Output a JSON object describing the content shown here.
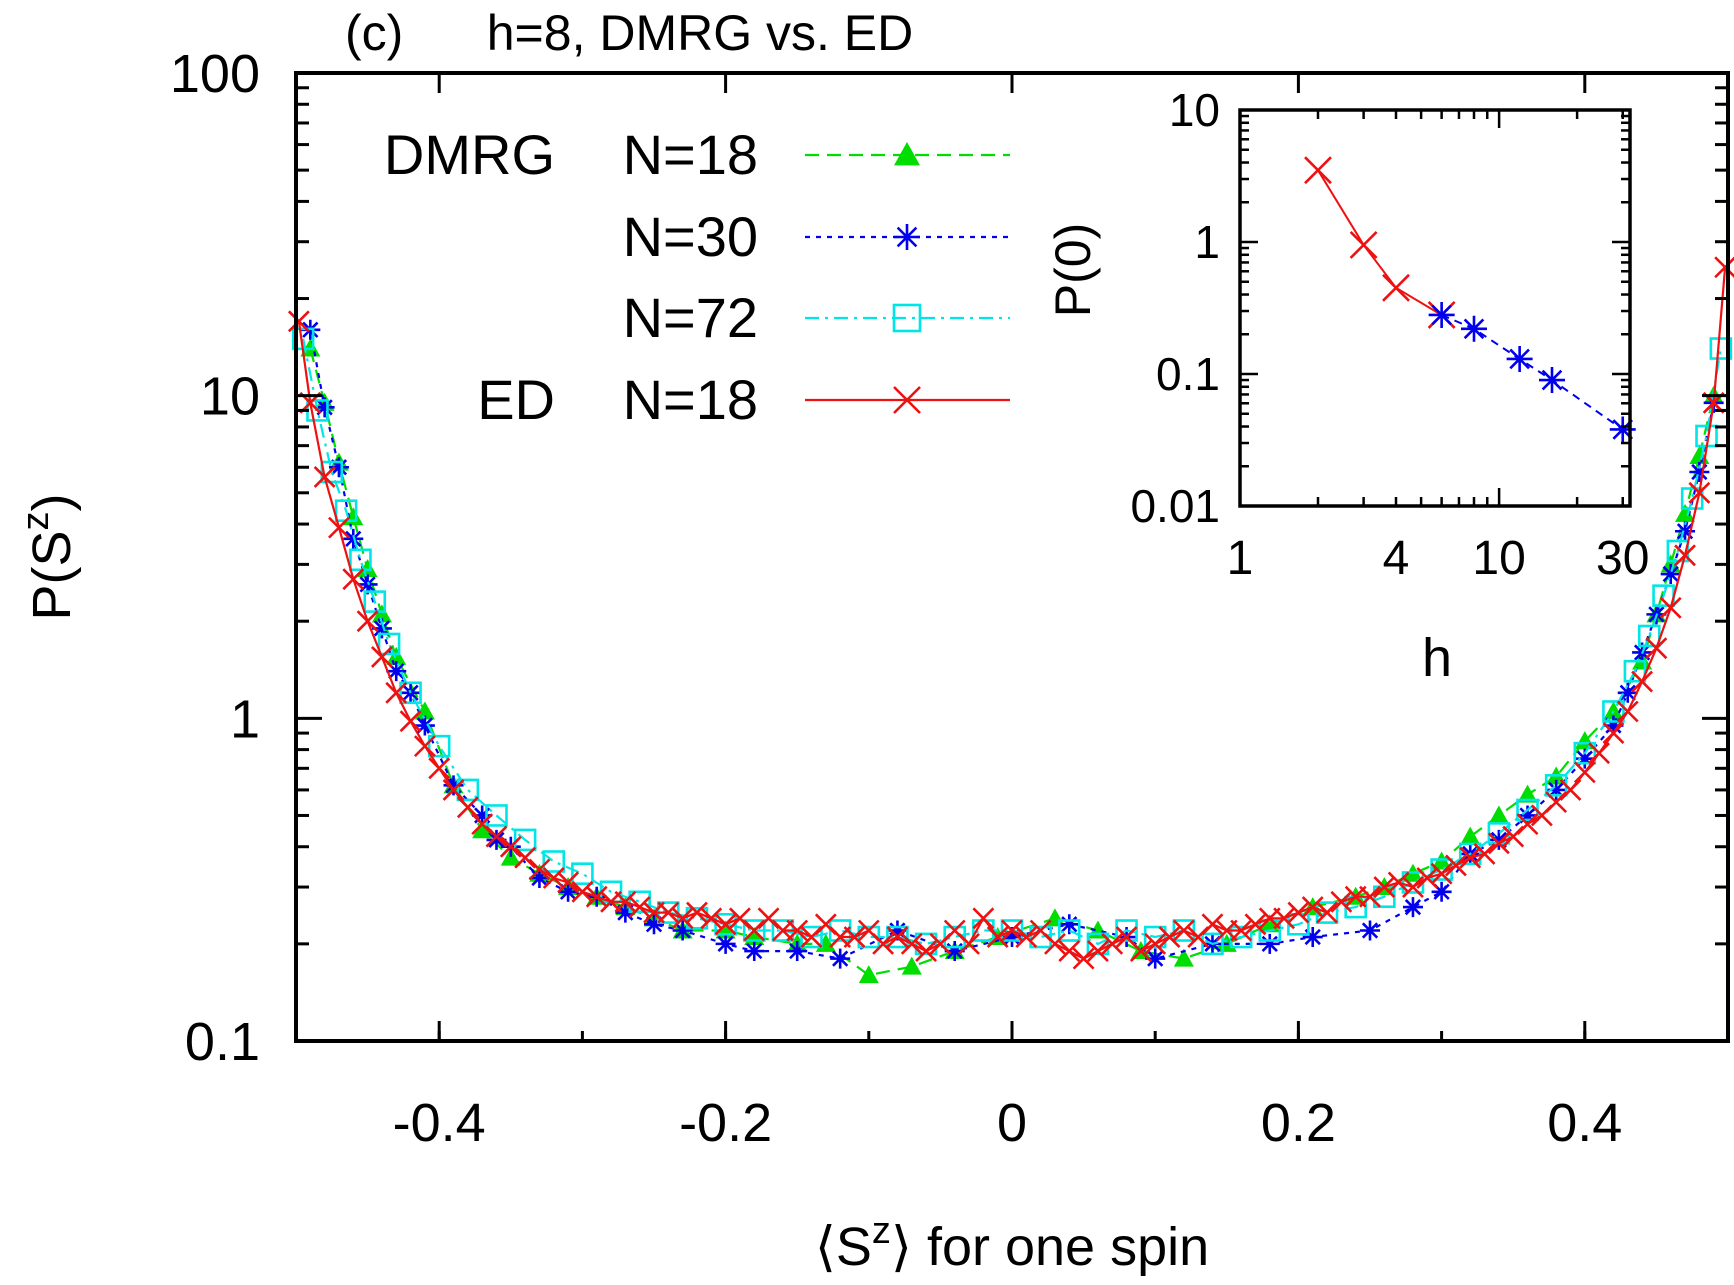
{
  "panel_label": "(c)",
  "title": "h=8, DMRG vs. ED",
  "colors": {
    "green": "#00dd00",
    "blue": "#0000ee",
    "cyan": "#00e5e5",
    "red": "#ee1111"
  },
  "chart_data": [
    {
      "id": "main",
      "type": "line",
      "title": "h=8, DMRG vs. ED",
      "xlabel": "⟨S^z⟩ for one spin",
      "ylabel": "P(S^z)",
      "xlim": [
        -0.5,
        0.5
      ],
      "ylim": [
        0.1,
        100
      ],
      "yscale": "log",
      "x_ticks": [
        "-0.4",
        "-0.2",
        "0",
        "0.2",
        "0.4"
      ],
      "y_ticks": [
        "0.1",
        "1",
        "10",
        "100"
      ],
      "legend_position": "top-left",
      "series": [
        {
          "name": "DMRG N=18",
          "legend_prefix": "DMRG",
          "legend_label": "N=18",
          "color": "green",
          "marker": "triangle",
          "dash": "dashed",
          "x": [
            -0.49,
            -0.48,
            -0.47,
            -0.46,
            -0.45,
            -0.44,
            -0.43,
            -0.41,
            -0.39,
            -0.37,
            -0.35,
            -0.33,
            -0.31,
            -0.29,
            -0.27,
            -0.25,
            -0.23,
            -0.2,
            -0.18,
            -0.15,
            -0.13,
            -0.1,
            -0.07,
            -0.04,
            -0.01,
            0.03,
            0.06,
            0.09,
            0.12,
            0.15,
            0.18,
            0.21,
            0.24,
            0.26,
            0.28,
            0.3,
            0.32,
            0.34,
            0.36,
            0.38,
            0.4,
            0.42,
            0.44,
            0.45,
            0.46,
            0.47,
            0.48,
            0.49
          ],
          "y": [
            14,
            9.5,
            6.2,
            4.2,
            2.9,
            2.1,
            1.55,
            1.05,
            0.62,
            0.45,
            0.37,
            0.33,
            0.3,
            0.28,
            0.26,
            0.24,
            0.22,
            0.22,
            0.21,
            0.2,
            0.2,
            0.16,
            0.17,
            0.19,
            0.21,
            0.24,
            0.22,
            0.19,
            0.18,
            0.2,
            0.23,
            0.26,
            0.28,
            0.3,
            0.33,
            0.36,
            0.43,
            0.5,
            0.58,
            0.66,
            0.85,
            1.05,
            1.5,
            2.1,
            3.0,
            4.3,
            6.5,
            10
          ]
        },
        {
          "name": "DMRG N=30",
          "legend_prefix": "",
          "legend_label": "N=30",
          "color": "blue",
          "marker": "asterisk",
          "dash": "dotted",
          "x": [
            -0.49,
            -0.48,
            -0.47,
            -0.46,
            -0.45,
            -0.44,
            -0.43,
            -0.42,
            -0.41,
            -0.39,
            -0.37,
            -0.36,
            -0.35,
            -0.33,
            -0.31,
            -0.29,
            -0.27,
            -0.25,
            -0.23,
            -0.2,
            -0.18,
            -0.15,
            -0.12,
            -0.08,
            -0.04,
            0.0,
            0.04,
            0.08,
            0.1,
            0.14,
            0.18,
            0.21,
            0.25,
            0.28,
            0.3,
            0.32,
            0.34,
            0.36,
            0.38,
            0.4,
            0.42,
            0.43,
            0.44,
            0.45,
            0.46,
            0.47,
            0.48,
            0.49
          ],
          "y": [
            16,
            9.2,
            6.0,
            3.6,
            2.6,
            1.9,
            1.4,
            1.2,
            0.95,
            0.62,
            0.5,
            0.42,
            0.4,
            0.32,
            0.29,
            0.28,
            0.25,
            0.23,
            0.22,
            0.2,
            0.19,
            0.19,
            0.18,
            0.22,
            0.19,
            0.21,
            0.23,
            0.21,
            0.18,
            0.2,
            0.2,
            0.21,
            0.22,
            0.26,
            0.29,
            0.38,
            0.42,
            0.5,
            0.6,
            0.75,
            0.95,
            1.2,
            1.6,
            2.1,
            2.8,
            3.8,
            5.8,
            9.5
          ]
        },
        {
          "name": "DMRG N=72",
          "legend_prefix": "",
          "legend_label": "N=72",
          "color": "cyan",
          "marker": "square",
          "dash": "dashdot",
          "x": [
            -0.495,
            -0.485,
            -0.475,
            -0.465,
            -0.455,
            -0.445,
            -0.435,
            -0.42,
            -0.4,
            -0.38,
            -0.36,
            -0.34,
            -0.32,
            -0.3,
            -0.28,
            -0.26,
            -0.24,
            -0.22,
            -0.2,
            -0.18,
            -0.16,
            -0.14,
            -0.12,
            -0.1,
            -0.08,
            -0.06,
            -0.04,
            -0.02,
            0.0,
            0.02,
            0.04,
            0.06,
            0.08,
            0.1,
            0.12,
            0.14,
            0.16,
            0.18,
            0.2,
            0.22,
            0.24,
            0.26,
            0.28,
            0.3,
            0.32,
            0.34,
            0.36,
            0.38,
            0.4,
            0.42,
            0.435,
            0.445,
            0.455,
            0.465,
            0.475,
            0.485,
            0.495
          ],
          "y": [
            15,
            9.0,
            5.8,
            4.4,
            3.1,
            2.3,
            1.7,
            1.2,
            0.82,
            0.6,
            0.5,
            0.42,
            0.36,
            0.33,
            0.29,
            0.27,
            0.25,
            0.24,
            0.23,
            0.22,
            0.22,
            0.21,
            0.22,
            0.21,
            0.21,
            0.2,
            0.21,
            0.22,
            0.22,
            0.21,
            0.22,
            0.2,
            0.22,
            0.21,
            0.22,
            0.2,
            0.21,
            0.22,
            0.23,
            0.25,
            0.26,
            0.28,
            0.31,
            0.34,
            0.38,
            0.44,
            0.52,
            0.62,
            0.78,
            1.05,
            1.4,
            1.8,
            2.4,
            3.3,
            4.8,
            7.5,
            14
          ]
        },
        {
          "name": "ED N=18",
          "legend_prefix": "ED",
          "legend_label": "N=18",
          "color": "red",
          "marker": "cross",
          "dash": "solid",
          "x": [
            -0.498,
            -0.49,
            -0.48,
            -0.47,
            -0.46,
            -0.45,
            -0.44,
            -0.43,
            -0.42,
            -0.41,
            -0.4,
            -0.39,
            -0.38,
            -0.37,
            -0.36,
            -0.35,
            -0.34,
            -0.33,
            -0.32,
            -0.31,
            -0.3,
            -0.29,
            -0.28,
            -0.27,
            -0.26,
            -0.25,
            -0.24,
            -0.23,
            -0.22,
            -0.21,
            -0.2,
            -0.19,
            -0.18,
            -0.17,
            -0.16,
            -0.15,
            -0.14,
            -0.13,
            -0.12,
            -0.11,
            -0.1,
            -0.09,
            -0.08,
            -0.07,
            -0.06,
            -0.05,
            -0.04,
            -0.03,
            -0.02,
            -0.01,
            0.0,
            0.01,
            0.02,
            0.03,
            0.04,
            0.05,
            0.06,
            0.07,
            0.08,
            0.09,
            0.1,
            0.11,
            0.12,
            0.13,
            0.14,
            0.15,
            0.16,
            0.17,
            0.18,
            0.19,
            0.2,
            0.21,
            0.22,
            0.23,
            0.24,
            0.25,
            0.26,
            0.27,
            0.28,
            0.29,
            0.3,
            0.31,
            0.32,
            0.33,
            0.34,
            0.35,
            0.36,
            0.37,
            0.38,
            0.39,
            0.4,
            0.41,
            0.42,
            0.43,
            0.44,
            0.45,
            0.46,
            0.47,
            0.48,
            0.49,
            0.498
          ],
          "y": [
            17,
            9.5,
            5.6,
            3.9,
            2.7,
            2.0,
            1.55,
            1.2,
            0.98,
            0.82,
            0.7,
            0.6,
            0.53,
            0.47,
            0.43,
            0.4,
            0.37,
            0.34,
            0.32,
            0.31,
            0.29,
            0.28,
            0.27,
            0.27,
            0.26,
            0.25,
            0.25,
            0.24,
            0.25,
            0.24,
            0.23,
            0.24,
            0.22,
            0.24,
            0.22,
            0.22,
            0.21,
            0.23,
            0.21,
            0.21,
            0.22,
            0.2,
            0.21,
            0.2,
            0.19,
            0.2,
            0.22,
            0.2,
            0.24,
            0.21,
            0.22,
            0.21,
            0.22,
            0.2,
            0.19,
            0.18,
            0.19,
            0.2,
            0.21,
            0.19,
            0.2,
            0.21,
            0.22,
            0.21,
            0.23,
            0.22,
            0.22,
            0.23,
            0.24,
            0.24,
            0.25,
            0.26,
            0.25,
            0.27,
            0.28,
            0.28,
            0.3,
            0.31,
            0.3,
            0.32,
            0.33,
            0.35,
            0.37,
            0.38,
            0.41,
            0.43,
            0.47,
            0.5,
            0.55,
            0.6,
            0.68,
            0.78,
            0.9,
            1.05,
            1.3,
            1.65,
            2.2,
            3.2,
            5.0,
            9.5,
            25
          ]
        }
      ]
    },
    {
      "id": "inset",
      "type": "line",
      "xlabel": "h",
      "ylabel": "P(0)",
      "xscale": "log",
      "yscale": "log",
      "xlim": [
        1,
        32
      ],
      "ylim": [
        0.01,
        10
      ],
      "x_ticks": [
        "1",
        "4",
        "10",
        "30"
      ],
      "y_ticks": [
        "0.01",
        "0.1",
        "1",
        "10"
      ],
      "series": [
        {
          "name": "ED",
          "color": "red",
          "marker": "cross",
          "dash": "solid",
          "x": [
            2,
            3,
            4,
            6
          ],
          "y": [
            3.5,
            0.95,
            0.45,
            0.28
          ]
        },
        {
          "name": "DMRG",
          "color": "blue",
          "marker": "asterisk",
          "dash": "dashed",
          "x": [
            6,
            8,
            12,
            16,
            30
          ],
          "y": [
            0.28,
            0.22,
            0.13,
            0.09,
            0.038
          ]
        }
      ]
    }
  ]
}
